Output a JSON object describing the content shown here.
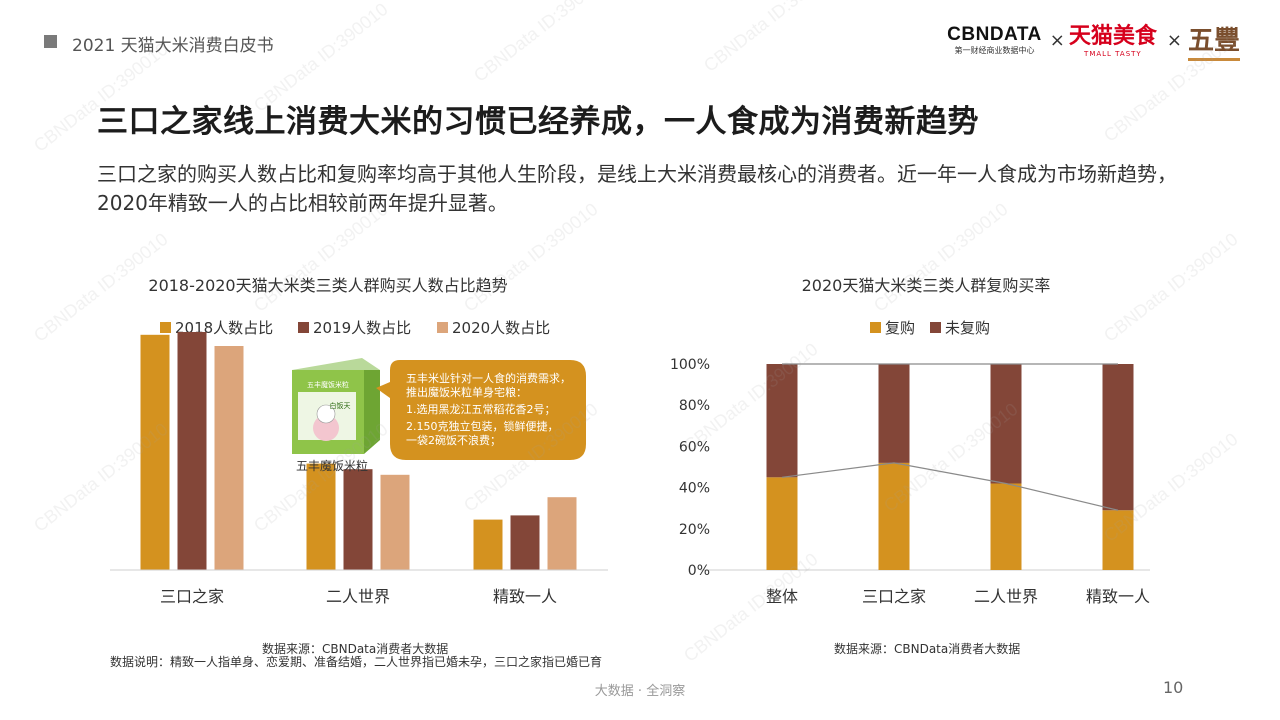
{
  "header": {
    "report_title": "2021 天猫大米消费白皮书"
  },
  "logos": {
    "cbn_main": "CBNDATA",
    "cbn_sub": "第一财经商业数据中心",
    "times": "×",
    "tmall_main": "天猫美食",
    "tmall_sub": "TMALL TASTY",
    "wufeng": "五豐"
  },
  "page": {
    "title": "三口之家线上消费大米的习惯已经养成，一人食成为消费新趋势",
    "description": "三口之家的购买人数占比和复购率均高于其他人生阶段，是线上大米消费最核心的消费者。近一年一人食成为市场新趋势，2020年精致一人的占比相较前两年提升显著。"
  },
  "colors": {
    "y2018": "#d4921f",
    "y2019": "#834638",
    "y2020": "#dca57b",
    "repurchase": "#d4921f",
    "no_repurchase": "#834638"
  },
  "chart_data": [
    {
      "type": "bar",
      "title": "2018-2020天猫大米类三类人群购买人数占比趋势",
      "categories": [
        "三口之家",
        "二人世界",
        "精致一人"
      ],
      "series": [
        {
          "name": "2018人数占比",
          "values": [
            0.84,
            0.38,
            0.18
          ]
        },
        {
          "name": "2019人数占比",
          "values": [
            0.85,
            0.36,
            0.195
          ]
        },
        {
          "name": "2020人数占比",
          "values": [
            0.8,
            0.34,
            0.26
          ]
        }
      ],
      "ylim": [
        0,
        1
      ],
      "product_label": "五丰魔饭米粒",
      "callout": [
        "五丰米业针对一人食的消费需求，",
        "推出魔饭米粒单身宅粮：",
        "1.选用黑龙江五常稻花香2号；",
        "2.150克独立包装，锁鲜便捷，",
        "一袋2碗饭不浪费；"
      ],
      "box_text": [
        "五丰魔饭米粒",
        "白饭天"
      ],
      "source": "数据来源：CBNData消费者大数据",
      "note": "数据说明：精致一人指单身、恋爱期、准备结婚，二人世界指已婚未孕，三口之家指已婚已育"
    },
    {
      "type": "bar",
      "stacked": true,
      "title": "2020天猫大米类三类人群复购买率",
      "categories": [
        "整体",
        "三口之家",
        "二人世界",
        "精致一人"
      ],
      "series": [
        {
          "name": "复购",
          "values": [
            45,
            52,
            42,
            29
          ]
        },
        {
          "name": "未复购",
          "values": [
            55,
            48,
            58,
            71
          ]
        }
      ],
      "ylim": [
        0,
        100
      ],
      "yticks": [
        "0%",
        "20%",
        "40%",
        "60%",
        "80%",
        "100%"
      ],
      "source": "数据来源：CBNData消费者大数据"
    }
  ],
  "footer": {
    "tagline": "大数据 · 全洞察",
    "page_number": "10"
  },
  "watermark": "CBNData ID:390010"
}
